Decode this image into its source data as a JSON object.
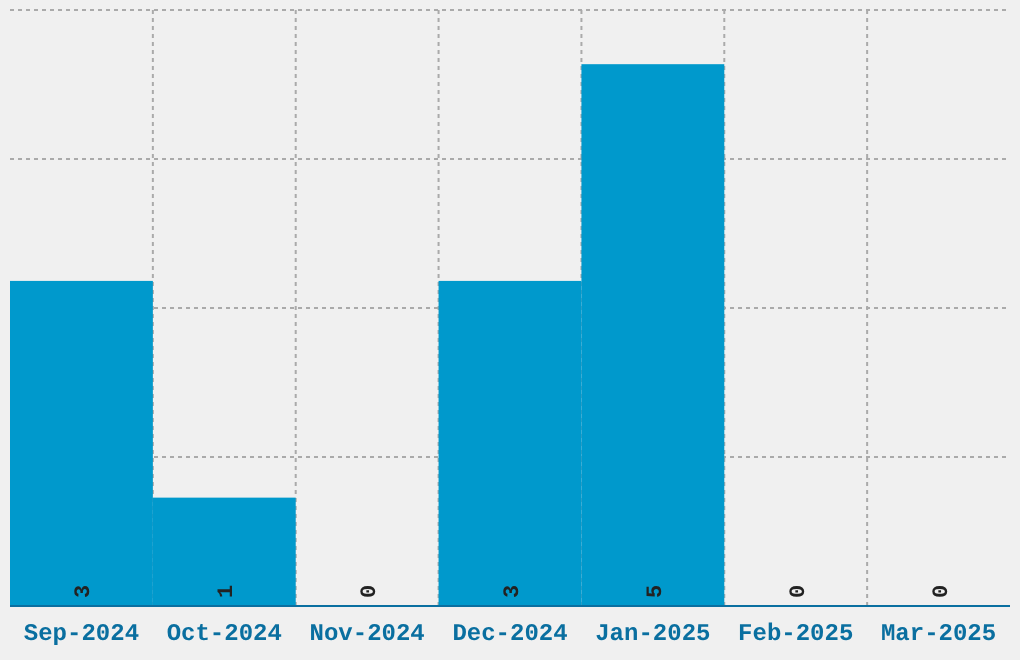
{
  "chart_data": {
    "type": "bar",
    "categories": [
      "Sep-2024",
      "Oct-2024",
      "Nov-2024",
      "Dec-2024",
      "Jan-2025",
      "Feb-2025",
      "Mar-2025"
    ],
    "values": [
      3,
      1,
      0,
      3,
      5,
      0,
      0
    ],
    "color": "#0099cc",
    "data_labels": true,
    "grid": true,
    "tick_labels": "x",
    "ylim": [
      0,
      5.5
    ],
    "yticks": [
      {
        "value": 1.375,
        "label": null
      },
      {
        "value": 2.75,
        "label": null
      },
      {
        "value": 4.125,
        "label": null
      },
      {
        "value": 5.5,
        "label": null
      }
    ]
  }
}
